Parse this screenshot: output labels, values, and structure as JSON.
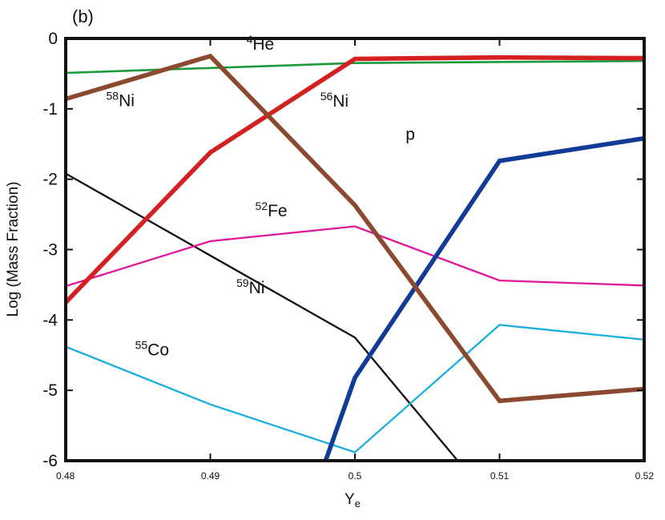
{
  "chart_data": {
    "type": "line",
    "panel_label": "(b)",
    "xlabel": {
      "main": "Y",
      "sub": "e"
    },
    "ylabel": "Log (Mass Fraction)",
    "xlim": [
      0.48,
      0.52
    ],
    "ylim": [
      -6,
      0
    ],
    "x_ticks": [
      {
        "value": 0.48,
        "label": "0.48"
      },
      {
        "value": 0.49,
        "label": "0.49"
      },
      {
        "value": 0.5,
        "label": "0.5"
      },
      {
        "value": 0.51,
        "label": "0.51"
      },
      {
        "value": 0.52,
        "label": "0.52"
      }
    ],
    "y_ticks": [
      {
        "value": 0,
        "label": "0"
      },
      {
        "value": -1,
        "label": "-1"
      },
      {
        "value": -2,
        "label": "-2"
      },
      {
        "value": -3,
        "label": "-3"
      },
      {
        "value": -4,
        "label": "-4"
      },
      {
        "value": -5,
        "label": "-5"
      },
      {
        "value": -6,
        "label": "-6"
      }
    ],
    "series": [
      {
        "name": "4He",
        "mass": "4",
        "element": "He",
        "color": "#1a9a3c",
        "weight": "thin",
        "points": [
          [
            0.48,
            -0.49
          ],
          [
            0.5,
            -0.35
          ],
          [
            0.52,
            -0.32
          ]
        ],
        "label_at": [
          0.4925,
          -0.16
        ]
      },
      {
        "name": "58Ni",
        "mass": "58",
        "element": "Ni",
        "color": "#8b4a30",
        "weight": "thick",
        "points": [
          [
            0.48,
            -0.86
          ],
          [
            0.49,
            -0.25
          ],
          [
            0.5,
            -2.37
          ],
          [
            0.51,
            -5.15
          ],
          [
            0.52,
            -4.98
          ]
        ],
        "label_at": [
          0.4828,
          -0.96
        ]
      },
      {
        "name": "56Ni",
        "mass": "56",
        "element": "Ni",
        "color": "#d42020",
        "weight": "thick",
        "points": [
          [
            0.48,
            -3.75
          ],
          [
            0.49,
            -1.62
          ],
          [
            0.5,
            -0.29
          ],
          [
            0.51,
            -0.27
          ],
          [
            0.52,
            -0.28
          ]
        ],
        "label_at": [
          0.4976,
          -0.97
        ]
      },
      {
        "name": "p",
        "mass": "",
        "element": "p",
        "color": "#113c96",
        "weight": "thick",
        "points": [
          [
            0.4978,
            -6.1
          ],
          [
            0.5,
            -4.82
          ],
          [
            0.51,
            -1.74
          ],
          [
            0.52,
            -1.42
          ]
        ],
        "label_at": [
          0.5035,
          -1.44
        ]
      },
      {
        "name": "52Fe",
        "mass": "52",
        "element": "Fe",
        "color": "#e0159a",
        "weight": "medium",
        "points": [
          [
            0.48,
            -3.52
          ],
          [
            0.49,
            -2.88
          ],
          [
            0.5,
            -2.67
          ],
          [
            0.51,
            -3.44
          ],
          [
            0.52,
            -3.51
          ]
        ],
        "label_at": [
          0.4931,
          -2.53
        ]
      },
      {
        "name": "59Ni",
        "mass": "59",
        "element": "Ni",
        "color": "#111111",
        "weight": "medium",
        "points": [
          [
            0.48,
            -1.92
          ],
          [
            0.5,
            -4.25
          ],
          [
            0.5071,
            -6.0
          ]
        ],
        "label_at": [
          0.4918,
          -3.62
        ]
      },
      {
        "name": "55Co",
        "mass": "55",
        "element": "Co",
        "color": "#19aee0",
        "weight": "medium",
        "points": [
          [
            0.48,
            -4.38
          ],
          [
            0.49,
            -5.2
          ],
          [
            0.5,
            -5.88
          ],
          [
            0.51,
            -4.07
          ],
          [
            0.52,
            -4.28
          ]
        ],
        "label_at": [
          0.4848,
          -4.5
        ]
      }
    ]
  }
}
